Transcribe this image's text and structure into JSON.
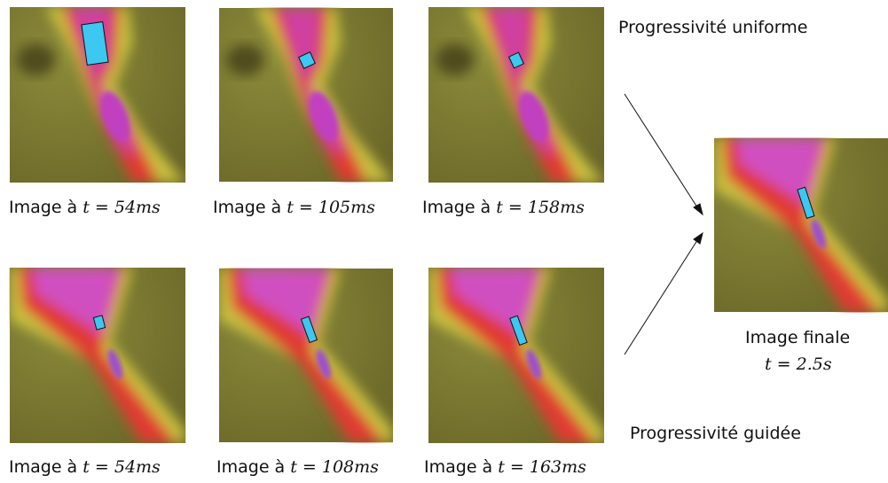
{
  "labels": {
    "uniform": "Progressivité uniforme",
    "guided": "Progressivité guidée"
  },
  "uniform_row": [
    {
      "prefix": "Image à",
      "math": "t = 54ms"
    },
    {
      "prefix": "Image à",
      "math": "t = 105ms"
    },
    {
      "prefix": "Image à",
      "math": "t = 158ms"
    }
  ],
  "guided_row": [
    {
      "prefix": "Image à",
      "math": "t = 54ms"
    },
    {
      "prefix": "Image à",
      "math": "t = 108ms"
    },
    {
      "prefix": "Image à",
      "math": "t = 163ms"
    }
  ],
  "final": {
    "title": "Image finale",
    "math": "t = 2.5s"
  }
}
